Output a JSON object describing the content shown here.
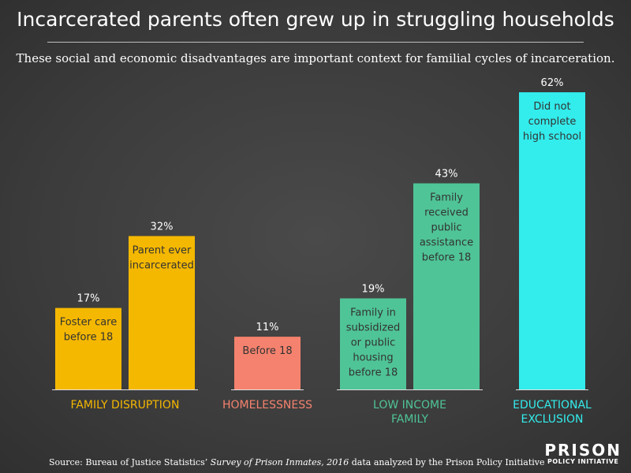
{
  "title": "Incarcerated parents often grew up in struggling households",
  "subtitle": "These social and economic disadvantages are important context for familial cycles of incarceration.",
  "source": {
    "prefix": "Source: Bureau of Justice Statistics’ ",
    "italic": "Survey of Prison Inmates, 2016",
    "suffix": " data analyzed by the Prison Policy Initiative"
  },
  "logo": {
    "line1": "PRISON",
    "line2": "POLICY INITIATIVE"
  },
  "chart_data": {
    "type": "bar",
    "unit": "%",
    "ylim": [
      0,
      100
    ],
    "grid": false,
    "groups": [
      {
        "label": [
          "FAMILY DISRUPTION"
        ],
        "color": "#f5b800",
        "bars": [
          {
            "value": 17,
            "value_label": "17%",
            "label": [
              "Foster care",
              "before 18"
            ]
          },
          {
            "value": 32,
            "value_label": "32%",
            "label": [
              "Parent ever",
              "incarcerated"
            ]
          }
        ]
      },
      {
        "label": [
          "HOMELESSNESS"
        ],
        "color": "#f5826e",
        "bars": [
          {
            "value": 11,
            "value_label": "11%",
            "label": [
              "Before 18"
            ]
          }
        ]
      },
      {
        "label": [
          "LOW INCOME",
          "FAMILY"
        ],
        "color": "#4fc497",
        "bars": [
          {
            "value": 19,
            "value_label": "19%",
            "label": [
              "Family in",
              "subsidized",
              "or public",
              "housing",
              "before 18"
            ]
          },
          {
            "value": 43,
            "value_label": "43%",
            "label": [
              "Family",
              "received",
              "public",
              "assistance",
              "before 18"
            ]
          }
        ]
      },
      {
        "label": [
          "EDUCATIONAL",
          "EXCLUSION"
        ],
        "color": "#33ecec",
        "bars": [
          {
            "value": 62,
            "value_label": "62%",
            "label": [
              "Did not",
              "complete",
              "high school"
            ]
          }
        ]
      }
    ]
  }
}
